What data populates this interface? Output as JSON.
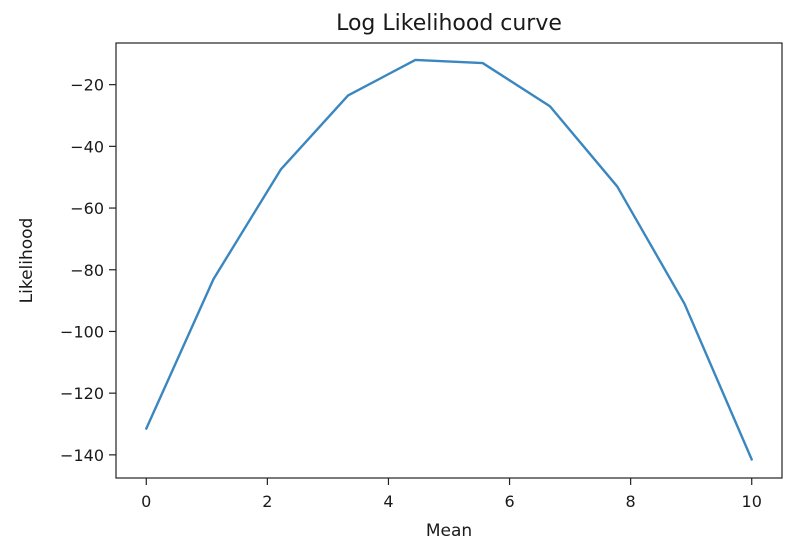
{
  "chart_data": {
    "type": "line",
    "title": "Log Likelihood curve",
    "xlabel": "Mean",
    "ylabel": "Likelihood",
    "xlim": [
      -0.5,
      10.5
    ],
    "ylim": [
      -147.5,
      -6.5
    ],
    "xticks": [
      0,
      2,
      4,
      6,
      8,
      10
    ],
    "yticks": [
      -140,
      -120,
      -100,
      -80,
      -60,
      -40,
      -20
    ],
    "grid": false,
    "legend": "none",
    "series_color": "#3a87c0",
    "x": [
      0,
      1.111,
      2.222,
      3.333,
      4.444,
      5.556,
      6.667,
      7.778,
      8.889,
      10
    ],
    "y": [
      -131.5,
      -83,
      -47.5,
      -23.5,
      -12,
      -13,
      -27,
      -53,
      -91,
      -141.5
    ]
  }
}
